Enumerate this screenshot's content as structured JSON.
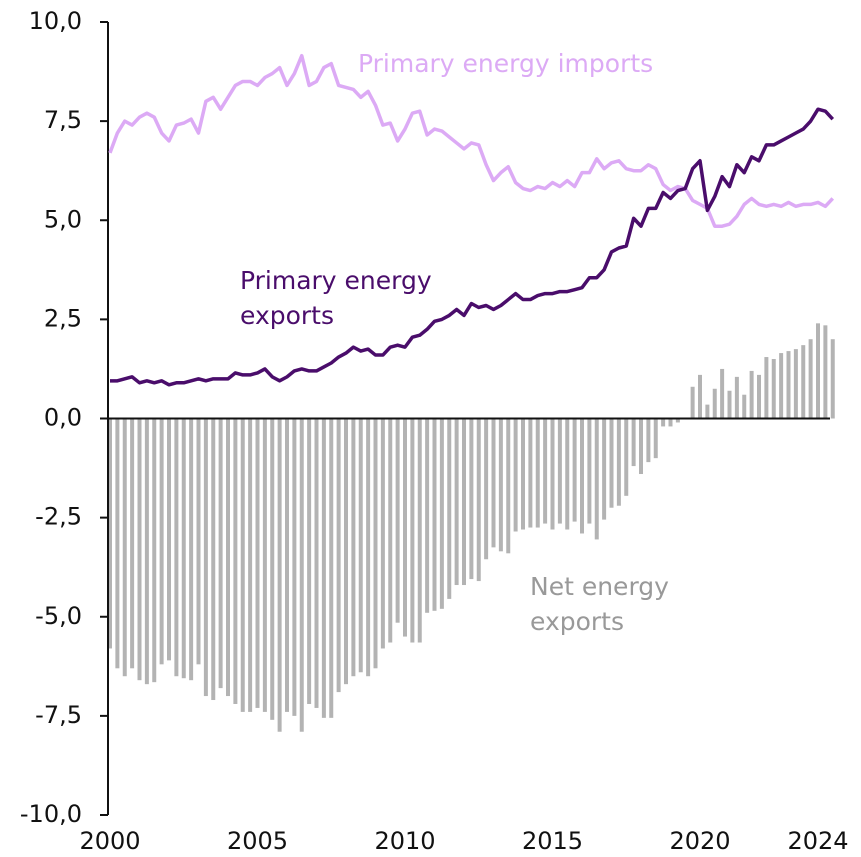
{
  "chart_data": {
    "type": "line-bar",
    "x": [
      2000,
      2000.25,
      2000.5,
      2000.75,
      2001,
      2001.25,
      2001.5,
      2001.75,
      2002,
      2002.25,
      2002.5,
      2002.75,
      2003,
      2003.25,
      2003.5,
      2003.75,
      2004,
      2004.25,
      2004.5,
      2004.75,
      2005,
      2005.25,
      2005.5,
      2005.75,
      2006,
      2006.25,
      2006.5,
      2006.75,
      2007,
      2007.25,
      2007.5,
      2007.75,
      2008,
      2008.25,
      2008.5,
      2008.75,
      2009,
      2009.25,
      2009.5,
      2009.75,
      2010,
      2010.25,
      2010.5,
      2010.75,
      2011,
      2011.25,
      2011.5,
      2011.75,
      2012,
      2012.25,
      2012.5,
      2012.75,
      2013,
      2013.25,
      2013.5,
      2013.75,
      2014,
      2014.25,
      2014.5,
      2014.75,
      2015,
      2015.25,
      2015.5,
      2015.75,
      2016,
      2016.25,
      2016.5,
      2016.75,
      2017,
      2017.25,
      2017.5,
      2017.75,
      2018,
      2018.25,
      2018.5,
      2018.75,
      2019,
      2019.25,
      2019.5,
      2019.75,
      2020,
      2020.25,
      2020.5,
      2020.75,
      2021,
      2021.25,
      2021.5,
      2021.75,
      2022,
      2022.25,
      2022.5,
      2022.75,
      2023,
      2023.25,
      2023.5,
      2023.75,
      2024,
      2024.25,
      2024.5
    ],
    "series": [
      {
        "name": "Primary energy imports",
        "kind": "line",
        "color": "#dcaaf5",
        "values": [
          6.7,
          7.2,
          7.5,
          7.4,
          7.6,
          7.7,
          7.6,
          7.2,
          7.0,
          7.4,
          7.45,
          7.55,
          7.2,
          8.0,
          8.1,
          7.8,
          8.1,
          8.4,
          8.5,
          8.5,
          8.4,
          8.6,
          8.7,
          8.85,
          8.4,
          8.7,
          9.15,
          8.4,
          8.5,
          8.85,
          8.95,
          8.4,
          8.35,
          8.3,
          8.1,
          8.25,
          7.9,
          7.4,
          7.45,
          7.0,
          7.3,
          7.7,
          7.75,
          7.15,
          7.3,
          7.25,
          7.1,
          6.95,
          6.8,
          6.95,
          6.9,
          6.4,
          6.0,
          6.2,
          6.35,
          5.95,
          5.8,
          5.75,
          5.85,
          5.8,
          5.95,
          5.85,
          6.0,
          5.85,
          6.2,
          6.2,
          6.55,
          6.3,
          6.45,
          6.5,
          6.3,
          6.25,
          6.25,
          6.4,
          6.3,
          5.9,
          5.75,
          5.85,
          5.8,
          5.5,
          5.4,
          5.3,
          4.85,
          4.85,
          4.9,
          5.1,
          5.4,
          5.55,
          5.4,
          5.35,
          5.4,
          5.35,
          5.45,
          5.35,
          5.4,
          5.4,
          5.45,
          5.35,
          5.55
        ]
      },
      {
        "name": "Primary energy exports",
        "kind": "line",
        "color": "#4a0d6b",
        "values": [
          0.95,
          0.95,
          1.0,
          1.05,
          0.9,
          0.95,
          0.9,
          0.95,
          0.85,
          0.9,
          0.9,
          0.95,
          1.0,
          0.95,
          1.0,
          1.0,
          1.0,
          1.15,
          1.1,
          1.1,
          1.15,
          1.25,
          1.05,
          0.95,
          1.05,
          1.2,
          1.25,
          1.2,
          1.2,
          1.3,
          1.4,
          1.55,
          1.65,
          1.8,
          1.7,
          1.75,
          1.6,
          1.6,
          1.8,
          1.85,
          1.8,
          2.05,
          2.1,
          2.25,
          2.45,
          2.5,
          2.6,
          2.75,
          2.6,
          2.9,
          2.8,
          2.85,
          2.75,
          2.85,
          3.0,
          3.15,
          3.0,
          3.0,
          3.1,
          3.15,
          3.15,
          3.2,
          3.2,
          3.25,
          3.3,
          3.55,
          3.55,
          3.75,
          4.2,
          4.3,
          4.35,
          5.05,
          4.85,
          5.3,
          5.3,
          5.7,
          5.55,
          5.75,
          5.8,
          6.3,
          6.5,
          5.25,
          5.6,
          6.1,
          5.85,
          6.4,
          6.2,
          6.6,
          6.5,
          6.9,
          6.9,
          7.0,
          7.1,
          7.2,
          7.3,
          7.5,
          7.8,
          7.75,
          7.55
        ]
      },
      {
        "name": "Net energy exports",
        "kind": "bar",
        "color": "#b3b3b3",
        "values": [
          -5.8,
          -6.3,
          -6.5,
          -6.3,
          -6.6,
          -6.7,
          -6.65,
          -6.2,
          -6.1,
          -6.5,
          -6.55,
          -6.6,
          -6.2,
          -7.0,
          -7.1,
          -6.8,
          -7.0,
          -7.2,
          -7.4,
          -7.4,
          -7.3,
          -7.4,
          -7.6,
          -7.9,
          -7.4,
          -7.5,
          -7.9,
          -7.2,
          -7.3,
          -7.55,
          -7.55,
          -6.9,
          -6.7,
          -6.5,
          -6.4,
          -6.5,
          -6.3,
          -5.8,
          -5.65,
          -5.15,
          -5.5,
          -5.65,
          -5.65,
          -4.9,
          -4.85,
          -4.8,
          -4.55,
          -4.2,
          -4.2,
          -4.05,
          -4.1,
          -3.55,
          -3.25,
          -3.35,
          -3.4,
          -2.85,
          -2.8,
          -2.75,
          -2.75,
          -2.65,
          -2.8,
          -2.65,
          -2.8,
          -2.6,
          -2.9,
          -2.65,
          -3.05,
          -2.55,
          -2.25,
          -2.2,
          -1.95,
          -1.2,
          -1.4,
          -1.1,
          -1.0,
          -0.2,
          -0.2,
          -0.1,
          0,
          0.8,
          1.1,
          0.35,
          0.75,
          1.25,
          0.7,
          1.05,
          0.6,
          1.2,
          1.1,
          1.55,
          1.5,
          1.65,
          1.7,
          1.75,
          1.85,
          2.0,
          2.4,
          2.35,
          2.0
        ]
      }
    ],
    "annotations": [
      {
        "lines": [
          "Primary energy imports"
        ],
        "color": "#dcaaf5"
      },
      {
        "lines": [
          "Primary energy",
          "exports"
        ],
        "color": "#4a0d6b"
      },
      {
        "lines": [
          "Net energy",
          "exports"
        ],
        "color": "#999999"
      }
    ],
    "xlim": [
      2000,
      2024.5
    ],
    "xticks": [
      2000,
      2005,
      2010,
      2015,
      2020,
      2024
    ],
    "ylim": [
      -10,
      10
    ],
    "yticks": [
      {
        "value": -10,
        "label": "-10,0"
      },
      {
        "value": -7.5,
        "label": "-7,5"
      },
      {
        "value": -5,
        "label": "-5,0"
      },
      {
        "value": -2.5,
        "label": "-2,5"
      },
      {
        "value": 0,
        "label": "0,0"
      },
      {
        "value": 2.5,
        "label": "2,5"
      },
      {
        "value": 5,
        "label": "5,0"
      },
      {
        "value": 7.5,
        "label": "7,5"
      },
      {
        "value": 10,
        "label": "10,0"
      }
    ]
  }
}
